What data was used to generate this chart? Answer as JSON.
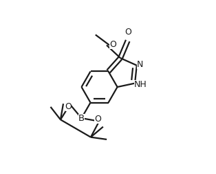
{
  "bg_color": "#ffffff",
  "line_color": "#1a1a1a",
  "lw": 1.6,
  "fs": 9.0,
  "dg": 0.013,
  "figsize": [
    3.14,
    2.52
  ],
  "dpi": 100,
  "xlim": [
    -0.05,
    1.0
  ],
  "ylim": [
    -0.05,
    1.05
  ]
}
